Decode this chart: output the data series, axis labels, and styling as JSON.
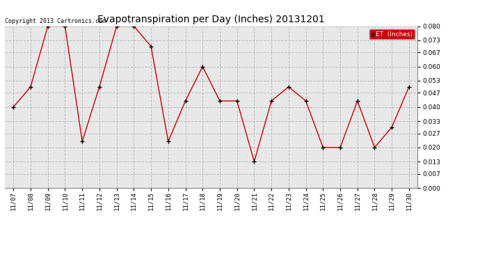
{
  "title": "Evapotranspiration per Day (Inches) 20131201",
  "dates": [
    "11/07",
    "11/08",
    "11/09",
    "11/10",
    "11/11",
    "11/12",
    "11/13",
    "11/14",
    "11/15",
    "11/16",
    "11/17",
    "11/18",
    "11/19",
    "11/20",
    "11/21",
    "11/22",
    "11/23",
    "11/24",
    "11/25",
    "11/26",
    "11/27",
    "11/28",
    "11/29",
    "11/30"
  ],
  "values": [
    0.04,
    0.05,
    0.08,
    0.08,
    0.023,
    0.05,
    0.08,
    0.08,
    0.07,
    0.023,
    0.043,
    0.06,
    0.043,
    0.043,
    0.013,
    0.043,
    0.05,
    0.043,
    0.02,
    0.02,
    0.043,
    0.02,
    0.03,
    0.05
  ],
  "line_color": "#cc0000",
  "marker_color": "#000000",
  "bg_color": "#ffffff",
  "grid_color": "#bbbbbb",
  "legend_label": "ET  (Inches)",
  "legend_bg": "#cc0000",
  "legend_text_color": "#ffffff",
  "copyright_text": "Copyright 2013 Cartronics.com",
  "ylim": [
    0.0,
    0.08
  ],
  "yticks": [
    0.0,
    0.007,
    0.013,
    0.02,
    0.027,
    0.033,
    0.04,
    0.047,
    0.053,
    0.06,
    0.067,
    0.073,
    0.08
  ],
  "title_fontsize": 10,
  "tick_fontsize": 6.5,
  "copyright_fontsize": 6
}
